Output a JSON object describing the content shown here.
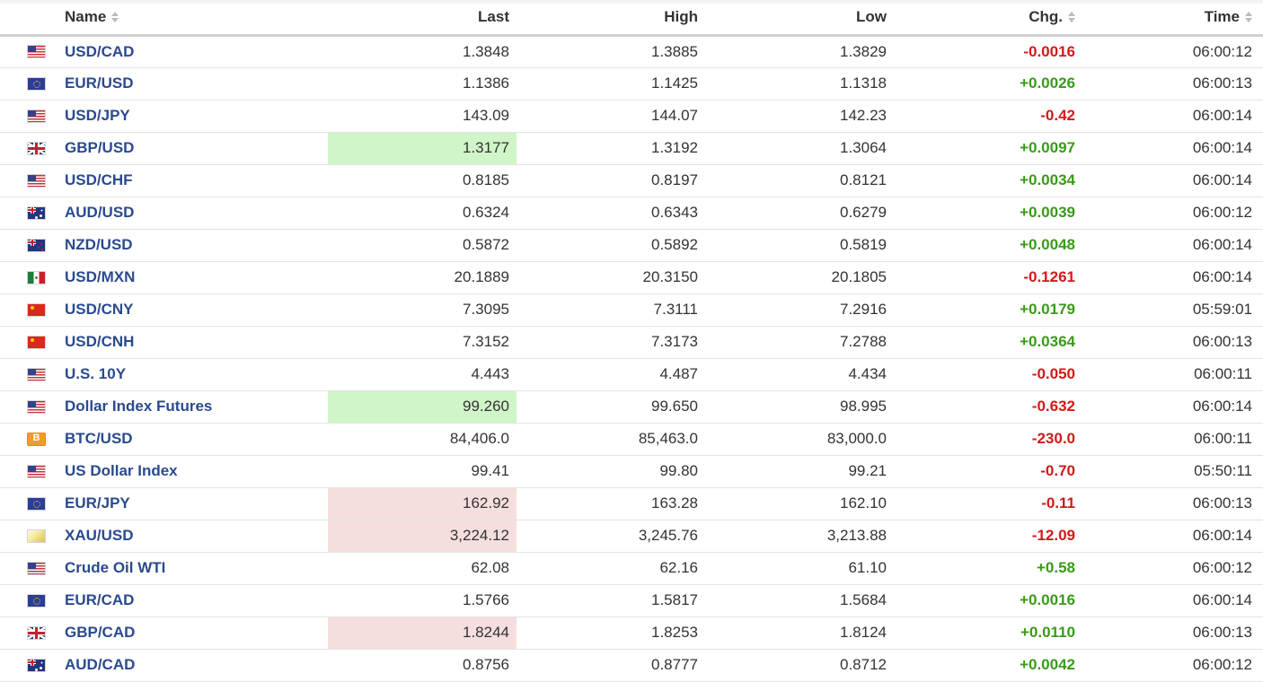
{
  "header": {
    "name": "Name",
    "last": "Last",
    "high": "High",
    "low": "Low",
    "chg": "Chg.",
    "time": "Time"
  },
  "colors": {
    "link": "#2a4a8f",
    "positive": "#3a9a1a",
    "negative": "#d21919",
    "flash_up": "#d0f5c8",
    "flash_down": "#f5dede"
  },
  "rows": [
    {
      "flag": "flag-us",
      "name": "USD/CAD",
      "last": "1.3848",
      "high": "1.3885",
      "low": "1.3829",
      "chg": "-0.0016",
      "dir": "neg",
      "time": "06:00:12",
      "flash": ""
    },
    {
      "flag": "flag-eu",
      "name": "EUR/USD",
      "last": "1.1386",
      "high": "1.1425",
      "low": "1.1318",
      "chg": "+0.0026",
      "dir": "pos",
      "time": "06:00:13",
      "flash": ""
    },
    {
      "flag": "flag-us",
      "name": "USD/JPY",
      "last": "143.09",
      "high": "144.07",
      "low": "142.23",
      "chg": "-0.42",
      "dir": "neg",
      "time": "06:00:14",
      "flash": ""
    },
    {
      "flag": "flag-gb",
      "name": "GBP/USD",
      "last": "1.3177",
      "high": "1.3192",
      "low": "1.3064",
      "chg": "+0.0097",
      "dir": "pos",
      "time": "06:00:14",
      "flash": "up"
    },
    {
      "flag": "flag-us",
      "name": "USD/CHF",
      "last": "0.8185",
      "high": "0.8197",
      "low": "0.8121",
      "chg": "+0.0034",
      "dir": "pos",
      "time": "06:00:14",
      "flash": ""
    },
    {
      "flag": "flag-au",
      "name": "AUD/USD",
      "last": "0.6324",
      "high": "0.6343",
      "low": "0.6279",
      "chg": "+0.0039",
      "dir": "pos",
      "time": "06:00:12",
      "flash": ""
    },
    {
      "flag": "flag-nz",
      "name": "NZD/USD",
      "last": "0.5872",
      "high": "0.5892",
      "low": "0.5819",
      "chg": "+0.0048",
      "dir": "pos",
      "time": "06:00:14",
      "flash": ""
    },
    {
      "flag": "flag-mx",
      "name": "USD/MXN",
      "last": "20.1889",
      "high": "20.3150",
      "low": "20.1805",
      "chg": "-0.1261",
      "dir": "neg",
      "time": "06:00:14",
      "flash": ""
    },
    {
      "flag": "flag-cn",
      "name": "USD/CNY",
      "last": "7.3095",
      "high": "7.3111",
      "low": "7.2916",
      "chg": "+0.0179",
      "dir": "pos",
      "time": "05:59:01",
      "flash": ""
    },
    {
      "flag": "flag-cn",
      "name": "USD/CNH",
      "last": "7.3152",
      "high": "7.3173",
      "low": "7.2788",
      "chg": "+0.0364",
      "dir": "pos",
      "time": "06:00:13",
      "flash": ""
    },
    {
      "flag": "flag-us",
      "name": "U.S. 10Y",
      "last": "4.443",
      "high": "4.487",
      "low": "4.434",
      "chg": "-0.050",
      "dir": "neg",
      "time": "06:00:11",
      "flash": ""
    },
    {
      "flag": "flag-us",
      "name": "Dollar Index Futures",
      "last": "99.260",
      "high": "99.650",
      "low": "98.995",
      "chg": "-0.632",
      "dir": "neg",
      "time": "06:00:14",
      "flash": "up"
    },
    {
      "flag": "flag-btc",
      "name": "BTC/USD",
      "last": "84,406.0",
      "high": "85,463.0",
      "low": "83,000.0",
      "chg": "-230.0",
      "dir": "neg",
      "time": "06:00:11",
      "flash": ""
    },
    {
      "flag": "flag-us",
      "name": "US Dollar Index",
      "last": "99.41",
      "high": "99.80",
      "low": "99.21",
      "chg": "-0.70",
      "dir": "neg",
      "time": "05:50:11",
      "flash": ""
    },
    {
      "flag": "flag-eu",
      "name": "EUR/JPY",
      "last": "162.92",
      "high": "163.28",
      "low": "162.10",
      "chg": "-0.11",
      "dir": "neg",
      "time": "06:00:13",
      "flash": "down"
    },
    {
      "flag": "flag-gold",
      "name": "XAU/USD",
      "last": "3,224.12",
      "high": "3,245.76",
      "low": "3,213.88",
      "chg": "-12.09",
      "dir": "neg",
      "time": "06:00:14",
      "flash": "down"
    },
    {
      "flag": "flag-us",
      "name": "Crude Oil WTI",
      "last": "62.08",
      "high": "62.16",
      "low": "61.10",
      "chg": "+0.58",
      "dir": "pos",
      "time": "06:00:12",
      "flash": ""
    },
    {
      "flag": "flag-eu",
      "name": "EUR/CAD",
      "last": "1.5766",
      "high": "1.5817",
      "low": "1.5684",
      "chg": "+0.0016",
      "dir": "pos",
      "time": "06:00:14",
      "flash": ""
    },
    {
      "flag": "flag-gb",
      "name": "GBP/CAD",
      "last": "1.8244",
      "high": "1.8253",
      "low": "1.8124",
      "chg": "+0.0110",
      "dir": "pos",
      "time": "06:00:13",
      "flash": "down"
    },
    {
      "flag": "flag-au",
      "name": "AUD/CAD",
      "last": "0.8756",
      "high": "0.8777",
      "low": "0.8712",
      "chg": "+0.0042",
      "dir": "pos",
      "time": "06:00:12",
      "flash": ""
    }
  ]
}
